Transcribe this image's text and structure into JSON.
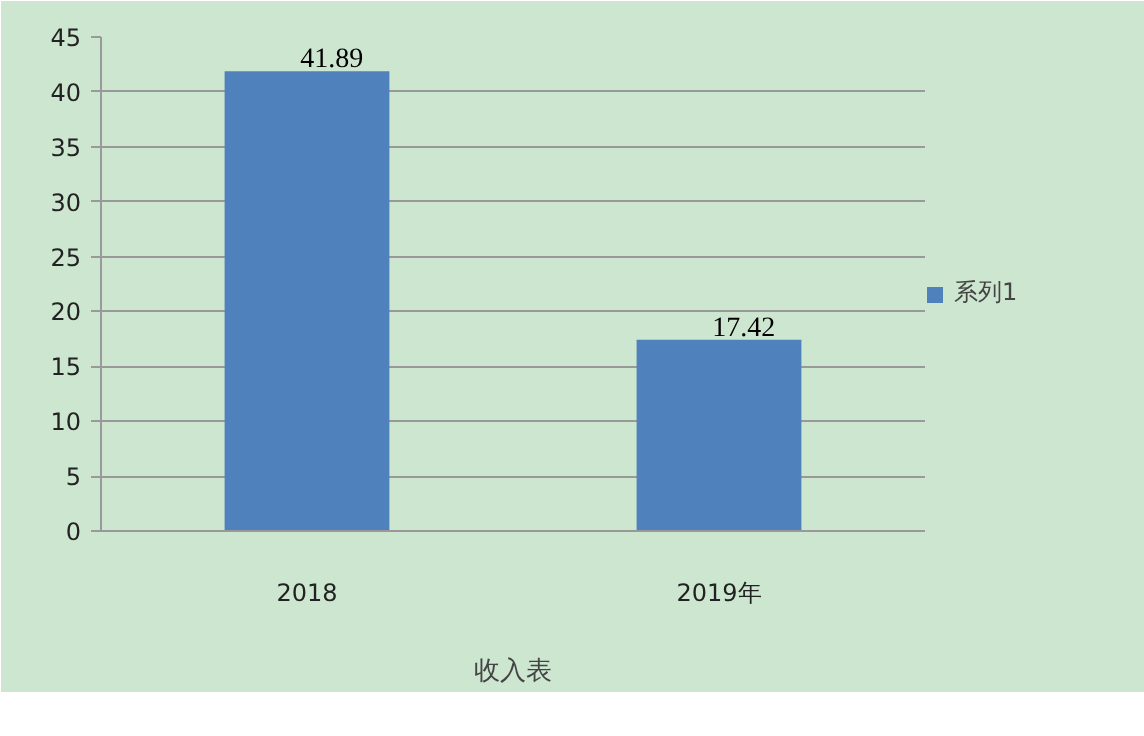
{
  "chart_data": {
    "type": "bar",
    "xlabel": "收入表",
    "categories": [
      "2018",
      "2019年"
    ],
    "series": [
      {
        "name": "系列1",
        "color": "#4f81bd",
        "values": [
          41.89,
          17.42
        ]
      }
    ],
    "ylim": [
      0,
      45
    ],
    "yticks": [
      0,
      5,
      10,
      15,
      20,
      25,
      30,
      35,
      40,
      45
    ],
    "grid": "y",
    "legend": "right",
    "data_labels": true
  }
}
